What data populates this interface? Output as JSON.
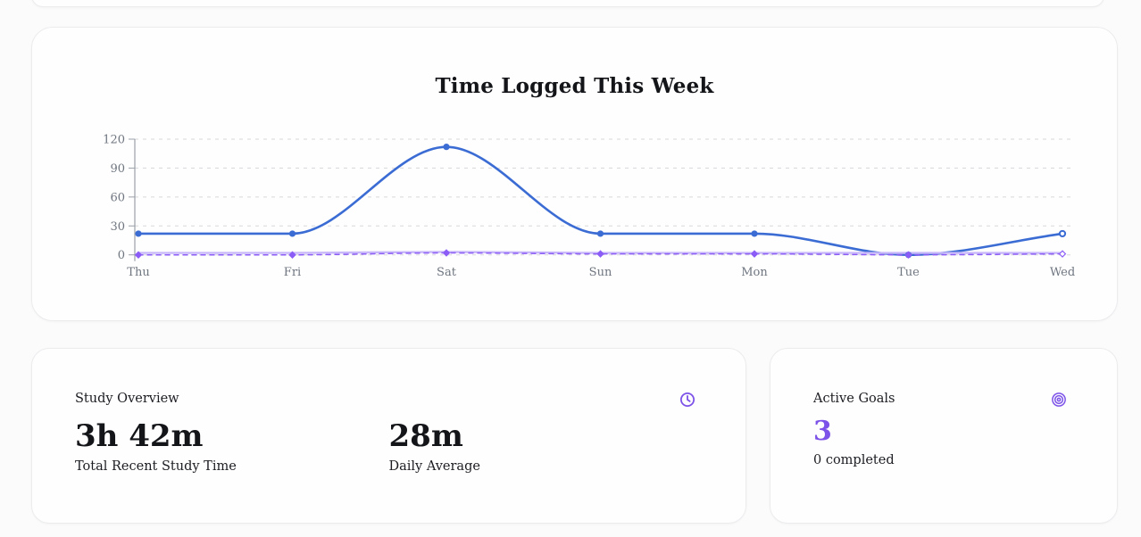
{
  "accent_color": "#7c52e8",
  "chart_data": {
    "type": "line",
    "title": "Time Logged This Week",
    "categories": [
      "Thu",
      "Fri",
      "Sat",
      "Sun",
      "Mon",
      "Tue",
      "Wed"
    ],
    "series": [
      {
        "name": "blue-minutes",
        "color": "#3b6cd4",
        "line_style": "solid",
        "point_style": "circle",
        "values": [
          22,
          22,
          112,
          22,
          22,
          0,
          22
        ]
      },
      {
        "name": "lavender-minutes",
        "color": "#c9b8f9",
        "line_style": "solid",
        "point_style": "none",
        "values": [
          2,
          2,
          3,
          2,
          2,
          2,
          2
        ]
      },
      {
        "name": "purple-dashed-minutes",
        "color": "#8b5cf6",
        "line_style": "dashed",
        "point_style": "diamond",
        "values": [
          0,
          0,
          2,
          1,
          1,
          0,
          1
        ]
      }
    ],
    "ylim": [
      0,
      120
    ],
    "yticks": [
      0,
      30,
      60,
      90,
      120
    ],
    "grid": "horizontal-dashed",
    "legend": "none"
  },
  "overview_card": {
    "title": "Study Overview",
    "icon": "clock-icon",
    "stats": [
      {
        "value": "3h 42m",
        "label": "Total Recent Study Time"
      },
      {
        "value": "28m",
        "label": "Daily Average"
      }
    ]
  },
  "goals_card": {
    "title": "Active Goals",
    "icon": "target-icon",
    "count": "3",
    "completed_label": "0 completed"
  }
}
